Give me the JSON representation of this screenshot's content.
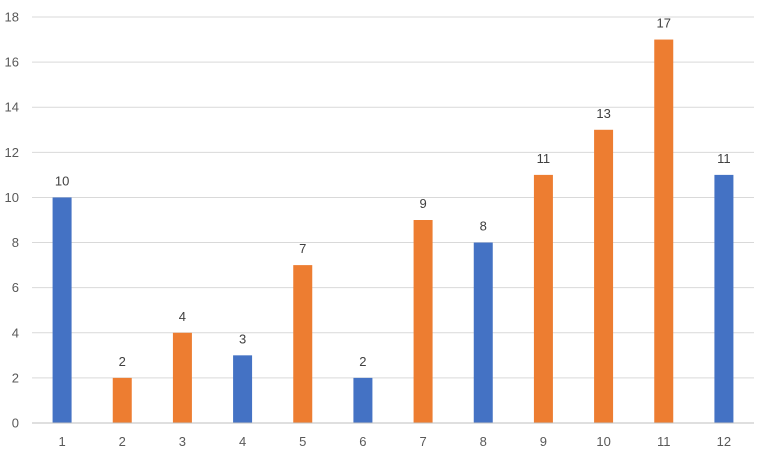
{
  "chart_data": {
    "type": "bar",
    "categories": [
      "1",
      "2",
      "3",
      "4",
      "5",
      "6",
      "7",
      "8",
      "9",
      "10",
      "11",
      "12"
    ],
    "values": [
      10,
      2,
      4,
      3,
      7,
      2,
      9,
      8,
      11,
      13,
      17,
      11
    ],
    "bar_colors": [
      "#4472c4",
      "#ed7d31",
      "#ed7d31",
      "#4472c4",
      "#ed7d31",
      "#4472c4",
      "#ed7d31",
      "#4472c4",
      "#ed7d31",
      "#ed7d31",
      "#ed7d31",
      "#4472c4"
    ],
    "ylim": [
      0,
      18
    ],
    "yticks": [
      "0",
      "2",
      "4",
      "6",
      "8",
      "10",
      "12",
      "14",
      "16",
      "18"
    ],
    "data_labels": [
      "10",
      "2",
      "4",
      "3",
      "7",
      "2",
      "9",
      "8",
      "11",
      "13",
      "17",
      "11"
    ],
    "grid": true,
    "legend": "none"
  }
}
